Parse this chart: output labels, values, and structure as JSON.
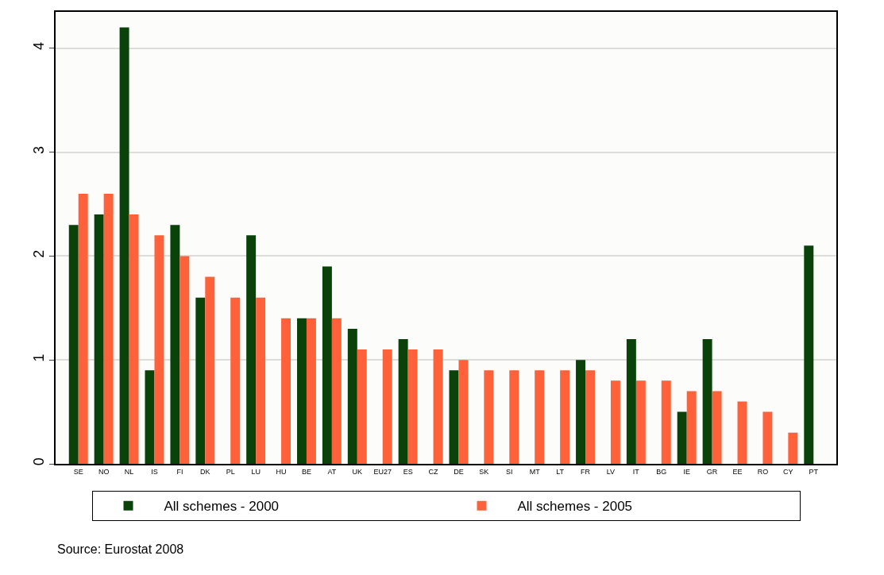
{
  "chart_data": {
    "type": "bar",
    "categories": [
      "SE",
      "NO",
      "NL",
      "IS",
      "FI",
      "DK",
      "PL",
      "LU",
      "HU",
      "BE",
      "AT",
      "UK",
      "EU27",
      "ES",
      "CZ",
      "DE",
      "SK",
      "SI",
      "MT",
      "LT",
      "FR",
      "LV",
      "IT",
      "BG",
      "IE",
      "GR",
      "EE",
      "RO",
      "CY",
      "PT"
    ],
    "series": [
      {
        "name": "All schemes - 2000",
        "color": "#0a430a",
        "values": [
          2.3,
          2.4,
          4.2,
          0.9,
          2.3,
          1.6,
          null,
          2.2,
          null,
          1.4,
          1.9,
          1.3,
          null,
          1.2,
          null,
          0.9,
          null,
          null,
          null,
          null,
          1.0,
          null,
          1.2,
          null,
          0.5,
          1.2,
          null,
          null,
          null,
          2.1
        ]
      },
      {
        "name": "All schemes - 2005",
        "color": "#ff623b",
        "values": [
          2.6,
          2.6,
          2.4,
          2.2,
          2.0,
          1.8,
          1.6,
          1.6,
          1.4,
          1.4,
          1.4,
          1.1,
          1.1,
          1.1,
          1.1,
          1.0,
          0.9,
          0.9,
          0.9,
          0.9,
          0.9,
          0.8,
          0.8,
          0.8,
          0.7,
          0.7,
          0.6,
          0.5,
          0.3,
          null
        ]
      }
    ],
    "ylim": [
      0,
      4.35
    ],
    "yticks": [
      0,
      1,
      2,
      3,
      4
    ],
    "grid": "y",
    "legend": "bottom",
    "annotations": [
      "Source: Eurostat 2008"
    ]
  }
}
